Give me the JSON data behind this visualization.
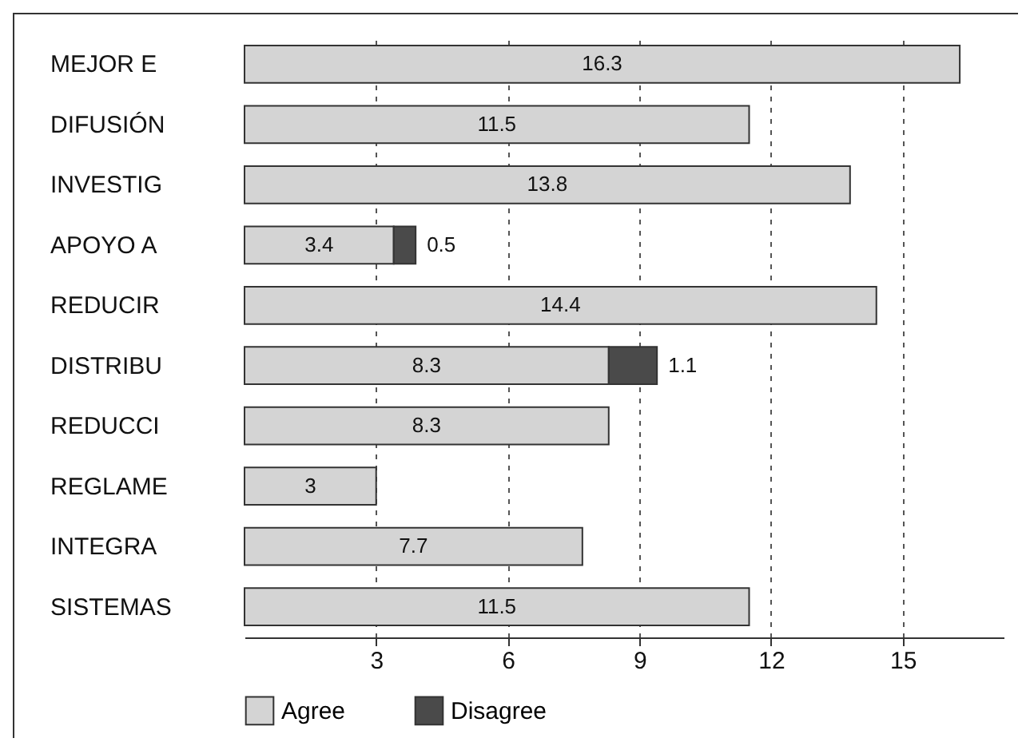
{
  "chart_data": {
    "type": "bar",
    "orientation": "horizontal",
    "stacked": true,
    "categories": [
      "MEJOR E",
      "DIFUSIÓN",
      "INVESTIG",
      "APOYO A",
      "REDUCIR",
      "DISTRIBU",
      "REDUCCI",
      "REGLAME",
      "INTEGRA",
      "SISTEMAS"
    ],
    "series": [
      {
        "name": "Agree",
        "color": "#d4d4d4",
        "values": [
          16.3,
          11.5,
          13.8,
          3.4,
          14.4,
          8.3,
          8.3,
          3,
          7.7,
          11.5
        ]
      },
      {
        "name": "Disagree",
        "color": "#4a4a4a",
        "values": [
          null,
          null,
          null,
          0.5,
          null,
          1.1,
          null,
          null,
          null,
          null
        ]
      }
    ],
    "xlim": [
      0,
      17.3
    ],
    "xticks": [
      3,
      6,
      9,
      12,
      15
    ],
    "grid": "x",
    "legend": "bottom",
    "data_labels": true
  }
}
